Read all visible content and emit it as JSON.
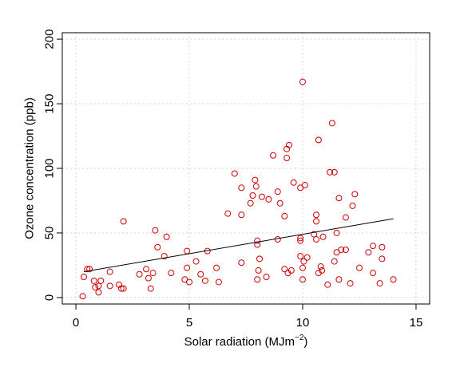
{
  "chart_data": {
    "type": "scatter",
    "title": "",
    "xlabel": "Solar radiation (MJm",
    "xlabel_sup": "−2",
    "xlabel_close": ")",
    "ylabel": "Ozone concentration (ppb)",
    "xlim": [
      -0.6,
      15.6
    ],
    "ylim": [
      -5,
      205
    ],
    "xticks": [
      0,
      5,
      10,
      15
    ],
    "yticks": [
      0,
      50,
      100,
      150,
      200
    ],
    "xtick_labels": [
      "0",
      "5",
      "10",
      "15"
    ],
    "ytick_labels": [
      "0",
      "50",
      "100",
      "150",
      "200"
    ],
    "grid": true,
    "point_color": "#cc0000",
    "line_color": "#000000",
    "series": [
      {
        "points": [
          [
            0.3,
            1
          ],
          [
            0.35,
            16
          ],
          [
            0.5,
            22
          ],
          [
            0.6,
            22
          ],
          [
            0.8,
            13
          ],
          [
            0.85,
            8
          ],
          [
            1.0,
            9
          ],
          [
            1.0,
            4
          ],
          [
            1.1,
            13
          ],
          [
            1.5,
            20
          ],
          [
            1.5,
            9
          ],
          [
            1.9,
            10
          ],
          [
            2.0,
            7
          ],
          [
            2.1,
            7
          ],
          [
            2.1,
            59
          ],
          [
            2.8,
            18
          ],
          [
            3.1,
            22
          ],
          [
            3.2,
            15
          ],
          [
            3.3,
            7
          ],
          [
            3.4,
            19
          ],
          [
            3.5,
            52
          ],
          [
            3.6,
            39
          ],
          [
            3.9,
            32
          ],
          [
            4.0,
            47
          ],
          [
            4.2,
            19
          ],
          [
            4.8,
            14
          ],
          [
            4.9,
            23
          ],
          [
            4.9,
            36
          ],
          [
            5.0,
            12
          ],
          [
            5.3,
            28
          ],
          [
            5.5,
            18
          ],
          [
            5.7,
            13
          ],
          [
            5.8,
            36
          ],
          [
            6.2,
            23
          ],
          [
            6.3,
            12
          ],
          [
            6.7,
            65
          ],
          [
            7.0,
            96
          ],
          [
            7.3,
            85
          ],
          [
            7.3,
            64
          ],
          [
            7.3,
            27
          ],
          [
            7.7,
            73
          ],
          [
            7.8,
            79
          ],
          [
            7.9,
            91
          ],
          [
            7.95,
            86
          ],
          [
            8.0,
            44
          ],
          [
            8.0,
            41
          ],
          [
            8.0,
            14
          ],
          [
            8.05,
            21
          ],
          [
            8.1,
            30
          ],
          [
            8.2,
            78
          ],
          [
            8.4,
            16
          ],
          [
            8.5,
            76
          ],
          [
            8.7,
            110
          ],
          [
            8.9,
            82
          ],
          [
            8.9,
            45
          ],
          [
            9.0,
            73
          ],
          [
            9.2,
            63
          ],
          [
            9.2,
            22
          ],
          [
            9.3,
            108
          ],
          [
            9.3,
            115
          ],
          [
            9.35,
            19
          ],
          [
            9.4,
            118
          ],
          [
            9.5,
            21
          ],
          [
            9.6,
            89
          ],
          [
            9.9,
            85
          ],
          [
            9.9,
            46
          ],
          [
            9.9,
            44
          ],
          [
            9.9,
            32
          ],
          [
            10.0,
            14
          ],
          [
            10.0,
            23
          ],
          [
            10.0,
            167
          ],
          [
            10.05,
            28
          ],
          [
            10.1,
            87
          ],
          [
            10.2,
            31
          ],
          [
            10.5,
            49
          ],
          [
            10.6,
            64
          ],
          [
            10.6,
            59
          ],
          [
            10.6,
            45
          ],
          [
            10.7,
            19
          ],
          [
            10.7,
            122
          ],
          [
            10.8,
            24
          ],
          [
            10.85,
            21
          ],
          [
            10.9,
            47
          ],
          [
            11.1,
            10
          ],
          [
            11.2,
            97
          ],
          [
            11.3,
            135
          ],
          [
            11.4,
            97
          ],
          [
            11.4,
            28
          ],
          [
            11.5,
            50
          ],
          [
            11.5,
            35
          ],
          [
            11.6,
            77
          ],
          [
            11.6,
            14
          ],
          [
            11.7,
            37
          ],
          [
            11.9,
            62
          ],
          [
            11.9,
            37
          ],
          [
            12.1,
            11
          ],
          [
            12.2,
            71
          ],
          [
            12.3,
            80
          ],
          [
            12.5,
            23
          ],
          [
            12.9,
            35
          ],
          [
            13.1,
            40
          ],
          [
            13.1,
            19
          ],
          [
            13.4,
            11
          ],
          [
            13.5,
            39
          ],
          [
            13.5,
            30
          ],
          [
            14.0,
            14
          ]
        ]
      }
    ],
    "fit_line": {
      "x": [
        0.35,
        14.0
      ],
      "y": [
        20,
        61
      ]
    }
  }
}
